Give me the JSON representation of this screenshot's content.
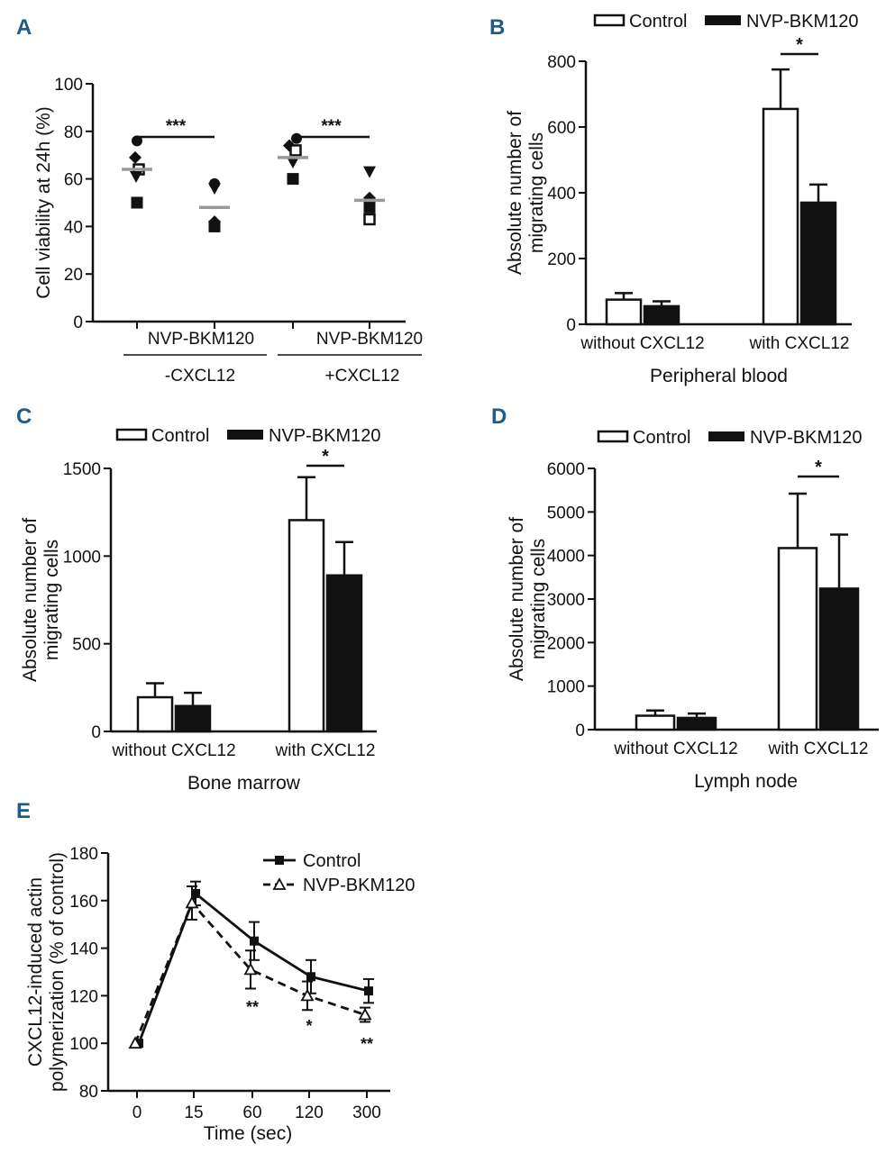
{
  "colors": {
    "ink": "#111111",
    "bar_fill_control": "#ffffff",
    "bar_fill_treated": "#111111",
    "grey_mean": "#999999",
    "panel_letter": "#1f5b8a"
  },
  "chart_data": [
    {
      "id": "A",
      "letter": "A",
      "type": "scatter",
      "ylabel": "Cell viability at 24h (%)",
      "ylim": [
        0,
        100
      ],
      "yticks": [
        0,
        20,
        40,
        60,
        80,
        100
      ],
      "x_markers": [
        "",
        "NVP-BKM120",
        "",
        "NVP-BKM120"
      ],
      "groups": [
        "-CXCL12",
        "+CXCL12"
      ],
      "points": [
        [
          {
            "m": "circle",
            "v": 76
          },
          {
            "m": "diamond",
            "v": 69
          },
          {
            "m": "opensquare",
            "v": 64
          },
          {
            "m": "tridown",
            "v": 61
          },
          {
            "m": "square",
            "v": 50
          }
        ],
        [
          {
            "m": "circle",
            "v": 58
          },
          {
            "m": "tridown",
            "v": 56
          },
          {
            "m": "diamond",
            "v": 42
          },
          {
            "m": "square",
            "v": 40
          }
        ],
        [
          {
            "m": "circle",
            "v": 77
          },
          {
            "m": "diamond",
            "v": 74
          },
          {
            "m": "opensquare",
            "v": 72
          },
          {
            "m": "tridown",
            "v": 67
          },
          {
            "m": "square",
            "v": 60
          }
        ],
        [
          {
            "m": "tridown",
            "v": 63
          },
          {
            "m": "diamond",
            "v": 52
          },
          {
            "m": "square",
            "v": 48
          },
          {
            "m": "opensquare",
            "v": 43
          }
        ]
      ],
      "means": [
        64,
        48,
        69,
        51
      ],
      "sig": [
        {
          "from": 0,
          "to": 1,
          "label": "***",
          "y": 89
        },
        {
          "from": 2,
          "to": 3,
          "label": "***",
          "y": 89
        }
      ]
    },
    {
      "id": "B",
      "letter": "B",
      "type": "bar",
      "ylabel_lines": [
        "Absolute number of",
        "migrating cells"
      ],
      "xlabel": "Peripheral blood",
      "ylim": [
        0,
        800
      ],
      "yticks": [
        0,
        200,
        400,
        600,
        800
      ],
      "categories": [
        "without CXCL12",
        "with CXCL12"
      ],
      "series": [
        {
          "name": "Control",
          "values": [
            75,
            655
          ],
          "err": [
            20,
            120
          ]
        },
        {
          "name": "NVP-BKM120",
          "values": [
            55,
            370
          ],
          "err": [
            15,
            55
          ]
        }
      ],
      "sig": {
        "label": "*",
        "y": 820
      }
    },
    {
      "id": "C",
      "letter": "C",
      "type": "bar",
      "ylabel_lines": [
        "Absolute number of",
        "migrating cells"
      ],
      "xlabel": "Bone marrow",
      "ylim": [
        0,
        1500
      ],
      "yticks": [
        0,
        500,
        1000,
        1500
      ],
      "categories": [
        "without CXCL12",
        "with CXCL12"
      ],
      "series": [
        {
          "name": "Control",
          "values": [
            195,
            1205
          ],
          "err": [
            80,
            245
          ]
        },
        {
          "name": "NVP-BKM120",
          "values": [
            145,
            890
          ],
          "err": [
            75,
            190
          ]
        }
      ],
      "sig": {
        "label": "*",
        "y": 1500
      }
    },
    {
      "id": "D",
      "letter": "D",
      "type": "bar",
      "ylabel_lines": [
        "Absolute number of",
        "migrating cells"
      ],
      "xlabel": "Lymph node",
      "ylim": [
        0,
        6000
      ],
      "yticks": [
        0,
        1000,
        2000,
        3000,
        4000,
        5000,
        6000
      ],
      "categories": [
        "without CXCL12",
        "with CXCL12"
      ],
      "series": [
        {
          "name": "Control",
          "values": [
            320,
            4170
          ],
          "err": [
            120,
            1250
          ]
        },
        {
          "name": "NVP-BKM120",
          "values": [
            270,
            3240
          ],
          "err": [
            100,
            1240
          ]
        }
      ],
      "sig": {
        "label": "*",
        "y": 5800
      }
    },
    {
      "id": "E",
      "letter": "E",
      "type": "line",
      "ylabel_lines": [
        "CXCL12-induced actin",
        "polymerization (% of control)"
      ],
      "xlabel": "Time (sec)",
      "ylim": [
        80,
        180
      ],
      "yticks": [
        80,
        100,
        120,
        140,
        160,
        180
      ],
      "x": [
        "0",
        "15",
        "60",
        "120",
        "300"
      ],
      "series": [
        {
          "name": "Control",
          "values": [
            100,
            163,
            143,
            128,
            122
          ],
          "err": [
            0,
            5,
            8,
            7,
            5
          ]
        },
        {
          "name": "NVP-BKM120",
          "values": [
            100,
            159,
            131,
            120,
            112
          ],
          "err": [
            0,
            7,
            8,
            6,
            3
          ]
        }
      ],
      "annotations": [
        {
          "xi": 2,
          "label": "**"
        },
        {
          "xi": 3,
          "label": "*"
        },
        {
          "xi": 4,
          "label": "**"
        }
      ]
    }
  ]
}
